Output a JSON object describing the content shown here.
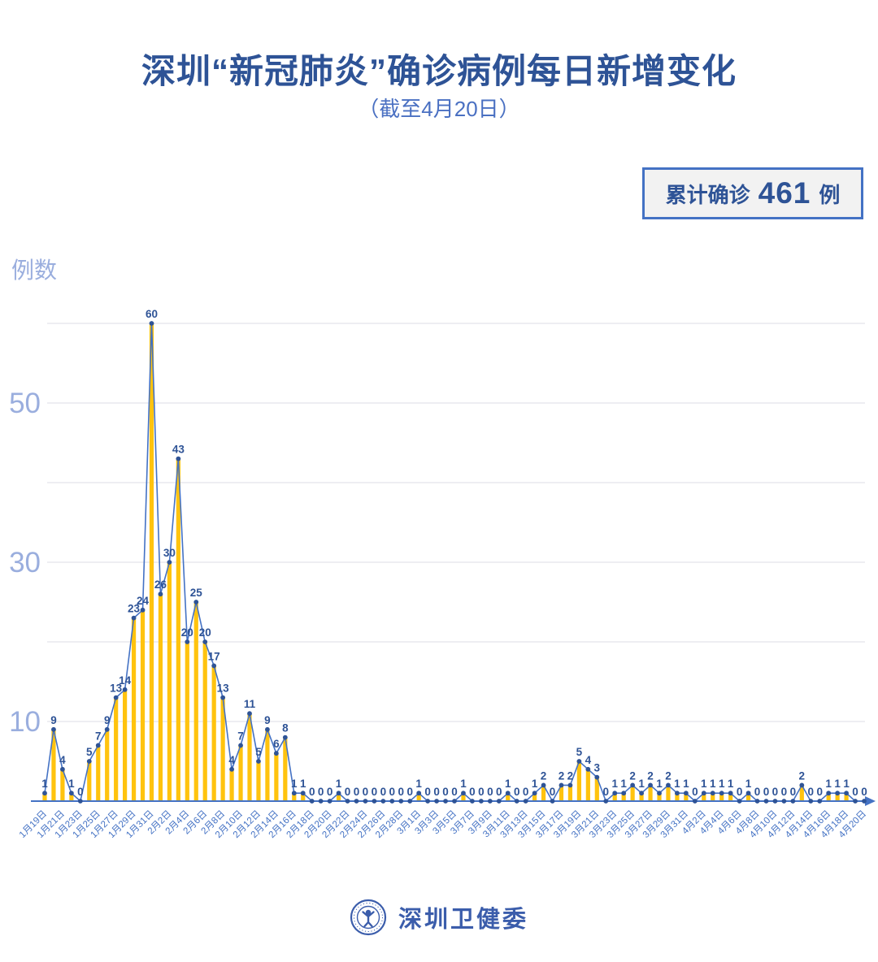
{
  "title": "深圳“新冠肺炎”确诊病例每日新增变化",
  "subtitle": "（截至4月20日）",
  "badge": {
    "prefix": "累计确诊",
    "value": "461",
    "suffix": "例"
  },
  "footer": {
    "org": "深圳卫健委"
  },
  "colors": {
    "accent_dark": "#2E5396",
    "accent": "#4472C4",
    "light_label": "#9AAEDE",
    "bar": "#FFC30E",
    "grid": "#E9E9ED",
    "badge_bg": "#F2F2F2",
    "logo_blue": "#3B5DAB"
  },
  "chart_data": {
    "type": "bar",
    "title": "深圳“新冠肺炎”确诊病例每日新增变化",
    "subtitle": "（截至4月20日）",
    "xlabel": "",
    "ylabel": "例数",
    "ylim": [
      0,
      60
    ],
    "gridlines": [
      10,
      20,
      30,
      40,
      50,
      60
    ],
    "yticks_labeled": [
      10,
      30,
      50
    ],
    "x_tick_every": 2,
    "legend": "none",
    "annotation_total": 461,
    "categories": [
      "1月19日",
      "1月20日",
      "1月21日",
      "1月22日",
      "1月23日",
      "1月24日",
      "1月25日",
      "1月26日",
      "1月27日",
      "1月28日",
      "1月29日",
      "1月30日",
      "1月31日",
      "2月1日",
      "2月2日",
      "2月3日",
      "2月4日",
      "2月5日",
      "2月6日",
      "2月7日",
      "2月8日",
      "2月9日",
      "2月10日",
      "2月11日",
      "2月12日",
      "2月13日",
      "2月14日",
      "2月15日",
      "2月16日",
      "2月17日",
      "2月18日",
      "2月19日",
      "2月20日",
      "2月21日",
      "2月22日",
      "2月23日",
      "2月24日",
      "2月25日",
      "2月26日",
      "2月27日",
      "2月28日",
      "2月29日",
      "3月1日",
      "3月2日",
      "3月3日",
      "3月4日",
      "3月5日",
      "3月6日",
      "3月7日",
      "3月8日",
      "3月9日",
      "3月10日",
      "3月11日",
      "3月12日",
      "3月13日",
      "3月14日",
      "3月15日",
      "3月16日",
      "3月17日",
      "3月18日",
      "3月19日",
      "3月20日",
      "3月21日",
      "3月22日",
      "3月23日",
      "3月24日",
      "3月25日",
      "3月26日",
      "3月27日",
      "3月28日",
      "3月29日",
      "3月30日",
      "3月31日",
      "4月1日",
      "4月2日",
      "4月3日",
      "4月4日",
      "4月5日",
      "4月6日",
      "4月7日",
      "4月8日",
      "4月9日",
      "4月10日",
      "4月11日",
      "4月12日",
      "4月13日",
      "4月14日",
      "4月15日",
      "4月16日",
      "4月17日",
      "4月18日",
      "4月19日",
      "4月20日"
    ],
    "values": [
      1,
      9,
      4,
      1,
      0,
      5,
      7,
      9,
      13,
      14,
      23,
      24,
      60,
      26,
      30,
      43,
      20,
      25,
      20,
      17,
      13,
      4,
      7,
      11,
      5,
      9,
      6,
      8,
      1,
      1,
      0,
      0,
      0,
      1,
      0,
      0,
      0,
      0,
      0,
      0,
      0,
      0,
      1,
      0,
      0,
      0,
      0,
      1,
      0,
      0,
      0,
      0,
      1,
      0,
      0,
      1,
      2,
      0,
      2,
      2,
      5,
      4,
      3,
      0,
      1,
      1,
      2,
      1,
      2,
      1,
      2,
      1,
      1,
      0,
      1,
      1,
      1,
      1,
      0,
      1,
      0,
      0,
      0,
      0,
      0,
      2,
      0,
      0,
      1,
      1,
      1,
      0,
      0
    ]
  }
}
